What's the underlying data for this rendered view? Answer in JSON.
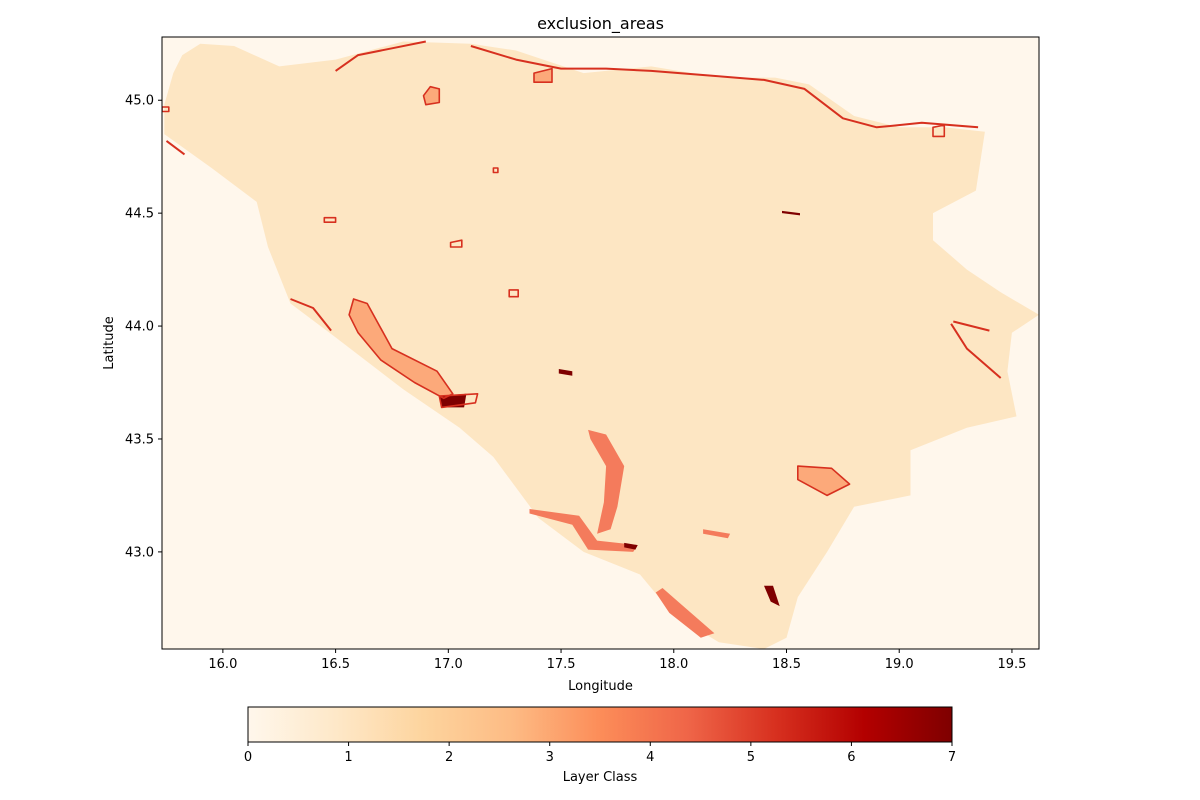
{
  "chart_data": {
    "type": "heatmap",
    "title": "exclusion_areas",
    "xlabel": "Longitude",
    "ylabel": "Latitude",
    "xlim": [
      15.73,
      19.62
    ],
    "ylim": [
      42.57,
      45.28
    ],
    "x_ticks": [
      16.0,
      16.5,
      17.0,
      17.5,
      18.0,
      18.5,
      19.0,
      19.5
    ],
    "x_tick_labels": [
      "16.0",
      "16.5",
      "17.0",
      "17.5",
      "18.0",
      "18.5",
      "19.0",
      "19.5"
    ],
    "y_ticks": [
      43.0,
      43.5,
      44.0,
      44.5,
      45.0
    ],
    "y_tick_labels": [
      "43.0",
      "43.5",
      "44.0",
      "44.5",
      "45.0"
    ],
    "grid": false,
    "colormap": "OrRd",
    "colorbar": {
      "label": "Layer Class",
      "orientation": "horizontal",
      "range": [
        0,
        7
      ],
      "ticks": [
        0,
        1,
        2,
        3,
        4,
        5,
        6,
        7
      ],
      "tick_labels": [
        "0",
        "1",
        "2",
        "3",
        "4",
        "5",
        "6",
        "7"
      ],
      "stops": [
        "#fff7ec",
        "#fee8c8",
        "#fdd49e",
        "#fdbb84",
        "#fc8d59",
        "#ef6548",
        "#d7301f",
        "#b30000",
        "#7f0000"
      ]
    },
    "classes": [
      {
        "value": 0,
        "color": "#fff7ec",
        "area": "outside country"
      },
      {
        "value": 1,
        "color": "#fde6c3",
        "area": "country interior"
      },
      {
        "value": 3,
        "color": "#fca97a",
        "area": "exclusion zones"
      },
      {
        "value": 4,
        "color": "#f47b5c",
        "area": "exclusion zones"
      },
      {
        "value": 5,
        "color": "#d7301f",
        "area": "exclusion boundaries"
      },
      {
        "value": 7,
        "color": "#7f0000",
        "area": "core exclusion"
      }
    ],
    "country_outline": [
      [
        15.74,
        44.98
      ],
      [
        15.78,
        45.12
      ],
      [
        15.82,
        45.2
      ],
      [
        15.9,
        45.25
      ],
      [
        16.05,
        45.24
      ],
      [
        16.25,
        45.15
      ],
      [
        16.5,
        45.18
      ],
      [
        16.8,
        45.26
      ],
      [
        17.1,
        45.25
      ],
      [
        17.3,
        45.22
      ],
      [
        17.6,
        45.12
      ],
      [
        17.9,
        45.15
      ],
      [
        18.2,
        45.1
      ],
      [
        18.45,
        45.1
      ],
      [
        18.6,
        45.07
      ],
      [
        18.8,
        44.93
      ],
      [
        19.0,
        44.88
      ],
      [
        19.2,
        44.88
      ],
      [
        19.38,
        44.86
      ],
      [
        19.34,
        44.6
      ],
      [
        19.15,
        44.5
      ],
      [
        19.15,
        44.38
      ],
      [
        19.3,
        44.25
      ],
      [
        19.45,
        44.15
      ],
      [
        19.62,
        44.05
      ],
      [
        19.5,
        43.97
      ],
      [
        19.48,
        43.8
      ],
      [
        19.52,
        43.6
      ],
      [
        19.3,
        43.55
      ],
      [
        19.05,
        43.45
      ],
      [
        19.05,
        43.25
      ],
      [
        18.8,
        43.2
      ],
      [
        18.68,
        43.0
      ],
      [
        18.55,
        42.8
      ],
      [
        18.5,
        42.62
      ],
      [
        18.4,
        42.57
      ],
      [
        18.2,
        42.6
      ],
      [
        18.0,
        42.72
      ],
      [
        17.85,
        42.9
      ],
      [
        17.6,
        43.0
      ],
      [
        17.4,
        43.15
      ],
      [
        17.2,
        43.42
      ],
      [
        17.05,
        43.55
      ],
      [
        16.8,
        43.72
      ],
      [
        16.5,
        43.95
      ],
      [
        16.3,
        44.1
      ],
      [
        16.2,
        44.35
      ],
      [
        16.15,
        44.55
      ],
      [
        15.95,
        44.7
      ],
      [
        15.74,
        44.85
      ]
    ],
    "zones": [
      {
        "class": 3,
        "polygon": [
          [
            16.58,
            44.12
          ],
          [
            16.64,
            44.1
          ],
          [
            16.75,
            43.9
          ],
          [
            16.95,
            43.8
          ],
          [
            17.02,
            43.7
          ],
          [
            16.98,
            43.68
          ],
          [
            16.85,
            43.75
          ],
          [
            16.7,
            43.85
          ],
          [
            16.6,
            43.97
          ],
          [
            16.56,
            44.05
          ]
        ]
      },
      {
        "class": 7,
        "polygon": [
          [
            16.96,
            43.69
          ],
          [
            17.08,
            43.7
          ],
          [
            17.07,
            43.64
          ],
          [
            16.97,
            43.64
          ]
        ]
      },
      {
        "class": 4,
        "polygon": [
          [
            17.62,
            43.54
          ],
          [
            17.7,
            43.52
          ],
          [
            17.78,
            43.38
          ],
          [
            17.75,
            43.2
          ],
          [
            17.72,
            43.1
          ],
          [
            17.66,
            43.08
          ],
          [
            17.69,
            43.22
          ],
          [
            17.7,
            43.38
          ],
          [
            17.63,
            43.5
          ]
        ]
      },
      {
        "class": 4,
        "polygon": [
          [
            17.36,
            43.19
          ],
          [
            17.58,
            43.16
          ],
          [
            17.66,
            43.05
          ],
          [
            17.84,
            43.03
          ],
          [
            17.82,
            43.0
          ],
          [
            17.62,
            43.01
          ],
          [
            17.55,
            43.12
          ],
          [
            17.36,
            43.17
          ]
        ]
      },
      {
        "class": 4,
        "polygon": [
          [
            17.95,
            42.84
          ],
          [
            18.03,
            42.77
          ],
          [
            18.18,
            42.64
          ],
          [
            18.12,
            42.62
          ],
          [
            17.98,
            42.73
          ],
          [
            17.92,
            42.82
          ]
        ]
      },
      {
        "class": 4,
        "polygon": [
          [
            18.13,
            43.1
          ],
          [
            18.25,
            43.08
          ],
          [
            18.24,
            43.06
          ],
          [
            18.13,
            43.08
          ]
        ]
      },
      {
        "class": 3,
        "polygon": [
          [
            18.55,
            43.38
          ],
          [
            18.7,
            43.37
          ],
          [
            18.78,
            43.3
          ],
          [
            18.68,
            43.25
          ],
          [
            18.55,
            43.32
          ]
        ]
      },
      {
        "class": 3,
        "polygon": [
          [
            16.9,
            44.98
          ],
          [
            16.96,
            44.99
          ],
          [
            16.96,
            45.05
          ],
          [
            16.92,
            45.06
          ],
          [
            16.89,
            45.02
          ]
        ]
      },
      {
        "class": 3,
        "polygon": [
          [
            17.38,
            45.12
          ],
          [
            17.46,
            45.14
          ],
          [
            17.46,
            45.08
          ],
          [
            17.38,
            45.08
          ]
        ]
      },
      {
        "class": 7,
        "polygon": [
          [
            18.4,
            42.85
          ],
          [
            18.44,
            42.85
          ],
          [
            18.47,
            42.76
          ],
          [
            18.43,
            42.78
          ]
        ]
      },
      {
        "class": 7,
        "polygon": [
          [
            17.78,
            43.04
          ],
          [
            17.84,
            43.03
          ],
          [
            17.83,
            43.01
          ],
          [
            17.78,
            43.02
          ]
        ]
      },
      {
        "class": 7,
        "polygon": [
          [
            18.48,
            44.51
          ],
          [
            18.56,
            44.5
          ],
          [
            18.56,
            44.49
          ],
          [
            18.48,
            44.5
          ]
        ]
      },
      {
        "class": 7,
        "polygon": [
          [
            17.49,
            43.81
          ],
          [
            17.55,
            43.8
          ],
          [
            17.55,
            43.78
          ],
          [
            17.49,
            43.79
          ]
        ]
      }
    ],
    "boundary_lines": [
      [
        [
          16.5,
          45.13
        ],
        [
          16.6,
          45.2
        ],
        [
          16.75,
          45.23
        ],
        [
          16.9,
          45.26
        ]
      ],
      [
        [
          17.1,
          45.24
        ],
        [
          17.3,
          45.18
        ],
        [
          17.5,
          45.14
        ],
        [
          17.7,
          45.14
        ],
        [
          17.9,
          45.13
        ],
        [
          18.15,
          45.11
        ],
        [
          18.4,
          45.09
        ],
        [
          18.58,
          45.05
        ],
        [
          18.75,
          44.92
        ],
        [
          18.9,
          44.88
        ],
        [
          19.1,
          44.9
        ],
        [
          19.35,
          44.88
        ]
      ],
      [
        [
          15.75,
          44.82
        ],
        [
          15.83,
          44.76
        ]
      ],
      [
        [
          16.3,
          44.12
        ],
        [
          16.4,
          44.08
        ],
        [
          16.48,
          43.98
        ]
      ],
      [
        [
          19.23,
          44.01
        ],
        [
          19.3,
          43.9
        ],
        [
          19.45,
          43.77
        ]
      ],
      [
        [
          19.24,
          44.02
        ],
        [
          19.4,
          43.98
        ]
      ]
    ],
    "boundary_rings": [
      [
        [
          16.58,
          44.12
        ],
        [
          16.64,
          44.1
        ],
        [
          16.75,
          43.9
        ],
        [
          16.95,
          43.8
        ],
        [
          17.02,
          43.7
        ],
        [
          16.98,
          43.68
        ],
        [
          16.85,
          43.75
        ],
        [
          16.7,
          43.85
        ],
        [
          16.6,
          43.97
        ],
        [
          16.56,
          44.05
        ]
      ],
      [
        [
          16.96,
          43.69
        ],
        [
          17.13,
          43.7
        ],
        [
          17.12,
          43.66
        ],
        [
          16.97,
          43.64
        ]
      ],
      [
        [
          18.55,
          43.38
        ],
        [
          18.7,
          43.37
        ],
        [
          18.78,
          43.3
        ],
        [
          18.68,
          43.25
        ],
        [
          18.55,
          43.32
        ]
      ],
      [
        [
          16.9,
          44.98
        ],
        [
          16.96,
          44.99
        ],
        [
          16.96,
          45.05
        ],
        [
          16.92,
          45.06
        ],
        [
          16.89,
          45.02
        ]
      ],
      [
        [
          17.38,
          45.12
        ],
        [
          17.46,
          45.14
        ],
        [
          17.46,
          45.08
        ],
        [
          17.38,
          45.08
        ]
      ],
      [
        [
          17.01,
          44.37
        ],
        [
          17.06,
          44.38
        ],
        [
          17.06,
          44.35
        ],
        [
          17.01,
          44.35
        ]
      ],
      [
        [
          16.45,
          44.48
        ],
        [
          16.5,
          44.48
        ],
        [
          16.5,
          44.46
        ],
        [
          16.45,
          44.46
        ]
      ],
      [
        [
          17.27,
          44.16
        ],
        [
          17.31,
          44.16
        ],
        [
          17.31,
          44.13
        ],
        [
          17.27,
          44.13
        ]
      ],
      [
        [
          17.2,
          44.7
        ],
        [
          17.22,
          44.7
        ],
        [
          17.22,
          44.68
        ],
        [
          17.2,
          44.68
        ]
      ],
      [
        [
          19.15,
          44.88
        ],
        [
          19.2,
          44.89
        ],
        [
          19.2,
          44.84
        ],
        [
          19.15,
          44.84
        ]
      ],
      [
        [
          15.73,
          44.97
        ],
        [
          15.76,
          44.97
        ],
        [
          15.76,
          44.95
        ],
        [
          15.73,
          44.95
        ]
      ]
    ]
  }
}
